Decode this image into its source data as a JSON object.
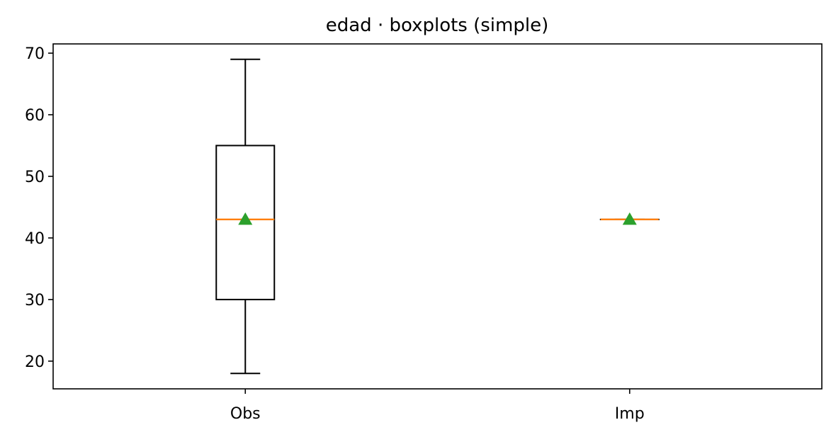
{
  "chart_data": {
    "type": "boxplot",
    "title": "edad · boxplots (simple)",
    "xlabel": "",
    "ylabel": "",
    "ylim": [
      15.5,
      71.5
    ],
    "yticks": [
      20,
      30,
      40,
      50,
      60,
      70
    ],
    "categories": [
      "Obs",
      "Imp"
    ],
    "boxes": [
      {
        "label": "Obs",
        "whisker_low": 18,
        "q1": 30,
        "median": 43,
        "q3": 55,
        "whisker_high": 69,
        "mean": 43
      },
      {
        "label": "Imp",
        "whisker_low": 43,
        "q1": 43,
        "median": 43,
        "q3": 43,
        "whisker_high": 43,
        "mean": 43
      }
    ],
    "grid": false,
    "colors": {
      "box": "#000000",
      "median": "#ff7f0e",
      "mean": "#2ca02c"
    }
  }
}
